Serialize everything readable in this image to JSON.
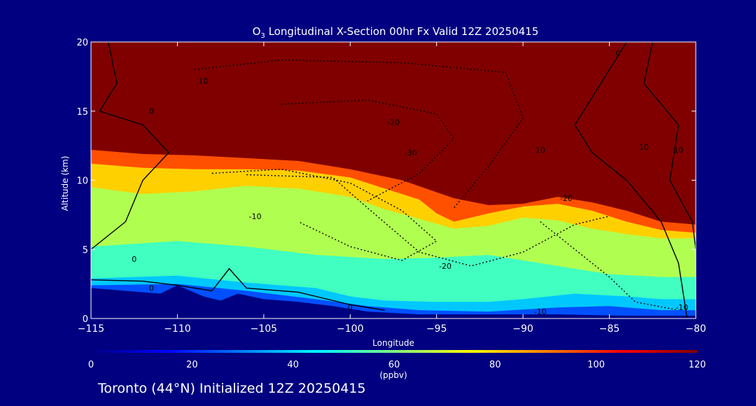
{
  "chart_data": {
    "type": "heatmap",
    "title_main": "O",
    "title_sub": "3",
    "title_rest": " Longitudinal X-Section 00hr  Fx Valid 12Z 20250415",
    "xlabel": "Longitude",
    "ylabel": "Altitude (km)",
    "xlim": [
      -115,
      -80
    ],
    "ylim": [
      0,
      20
    ],
    "x_ticks": [
      -115,
      -110,
      -105,
      -100,
      -95,
      -90,
      -85,
      -80
    ],
    "x_tick_labels": [
      "−115",
      "−110",
      "−105",
      "−100",
      "−95",
      "−90",
      "−85",
      "−80"
    ],
    "y_ticks": [
      0,
      5,
      10,
      15,
      20
    ],
    "y_tick_labels": [
      "0",
      "5",
      "10",
      "15",
      "20"
    ],
    "colorbar": {
      "min": 0,
      "max": 120,
      "ticks": [
        0,
        20,
        40,
        60,
        80,
        100,
        120
      ],
      "tick_labels": [
        "0",
        "20",
        "40",
        "60",
        "80",
        "100",
        "120"
      ],
      "units": "(ppbv)",
      "colors": [
        "#000080",
        "#0000ff",
        "#0080ff",
        "#00ffff",
        "#80ff80",
        "#ffff00",
        "#ff8000",
        "#ff0000",
        "#800000"
      ]
    },
    "ozone_contours": [
      {
        "level": 120,
        "points": [
          [
            -115,
            12.2
          ],
          [
            -112,
            11.9
          ],
          [
            -109,
            11.8
          ],
          [
            -106,
            11.6
          ],
          [
            -103,
            11.4
          ],
          [
            -100,
            10.8
          ],
          [
            -97,
            10.0
          ],
          [
            -94,
            8.7
          ],
          [
            -92,
            8.2
          ],
          [
            -90,
            8.3
          ],
          [
            -88,
            8.8
          ],
          [
            -86,
            8.4
          ],
          [
            -84,
            7.8
          ],
          [
            -82,
            7.0
          ],
          [
            -80,
            6.8
          ]
        ]
      },
      {
        "level": 100,
        "points": [
          [
            -115,
            11.2
          ],
          [
            -112,
            10.9
          ],
          [
            -109,
            10.8
          ],
          [
            -106,
            10.8
          ],
          [
            -103,
            10.7
          ],
          [
            -100,
            10.2
          ],
          [
            -98,
            9.4
          ],
          [
            -96,
            8.6
          ],
          [
            -95,
            7.6
          ],
          [
            -94,
            7.0
          ],
          [
            -92,
            7.6
          ],
          [
            -90,
            8.1
          ],
          [
            -88,
            8.3
          ],
          [
            -86,
            7.8
          ],
          [
            -84,
            7.0
          ],
          [
            -82,
            6.4
          ],
          [
            -80,
            6.2
          ]
        ]
      },
      {
        "level": 80,
        "points": [
          [
            -115,
            9.5
          ],
          [
            -112,
            9.0
          ],
          [
            -109,
            9.2
          ],
          [
            -106,
            9.6
          ],
          [
            -103,
            9.4
          ],
          [
            -100,
            8.8
          ],
          [
            -98,
            7.9
          ],
          [
            -96,
            7.2
          ],
          [
            -94,
            6.5
          ],
          [
            -92,
            6.7
          ],
          [
            -90,
            7.3
          ],
          [
            -88,
            7.1
          ],
          [
            -86,
            6.5
          ],
          [
            -84,
            6.1
          ],
          [
            -82,
            5.8
          ],
          [
            -80,
            5.8
          ]
        ]
      }
    ],
    "contour_labels": [
      "10",
      "0",
      "-20",
      "-30",
      "-10",
      "-20",
      "-20",
      "-10",
      "10",
      "0",
      "0",
      "0",
      "10",
      "10",
      "0",
      "-10"
    ],
    "footer": "Toronto (44°N) Initialized 12Z 20250415"
  }
}
